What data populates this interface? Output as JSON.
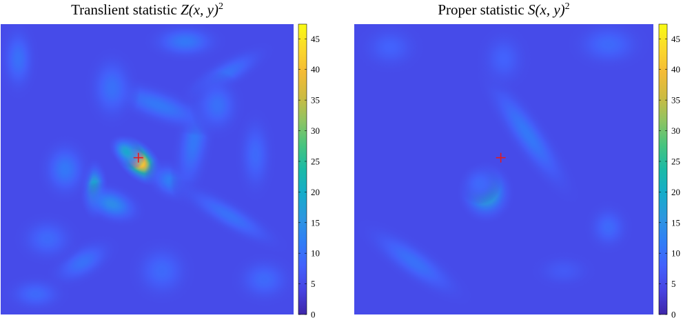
{
  "colors": {
    "colormap": [
      "#3e26a8",
      "#4743e2",
      "#4361fc",
      "#307ef6",
      "#2d97df",
      "#16acca",
      "#1bbaa6",
      "#47c47e",
      "#8fc462",
      "#cdbb41",
      "#f4bb36",
      "#fbd92b",
      "#f9fb14"
    ],
    "marker": "#e41a1c"
  },
  "chart_data": [
    {
      "type": "heatmap",
      "title_text": "Translient statistic ",
      "title_math": "Z(x, y)",
      "title_sup": "2",
      "colorbar": {
        "ticks": [
          0,
          5,
          10,
          15,
          20,
          25,
          30,
          35,
          40,
          45
        ],
        "range": [
          0,
          47.4
        ]
      },
      "peak_value": 47,
      "peak_location": [
        0.47,
        0.46
      ],
      "marker": {
        "symbol": "+",
        "x": 0.47,
        "y": 0.46
      },
      "background_level": 5,
      "blobs": [
        {
          "x": 0.47,
          "y": 0.47,
          "sx": 0.045,
          "sy": 0.026,
          "angle": 45,
          "amp": 42
        },
        {
          "x": 0.43,
          "y": 0.44,
          "sx": 0.03,
          "sy": 0.02,
          "angle": 40,
          "amp": 14
        },
        {
          "x": 0.32,
          "y": 0.57,
          "sx": 0.02,
          "sy": 0.045,
          "angle": 0,
          "amp": 17
        },
        {
          "x": 0.38,
          "y": 0.62,
          "sx": 0.05,
          "sy": 0.03,
          "angle": 20,
          "amp": 9
        },
        {
          "x": 0.22,
          "y": 0.5,
          "sx": 0.04,
          "sy": 0.05,
          "angle": 0,
          "amp": 6
        },
        {
          "x": 0.58,
          "y": 0.54,
          "sx": 0.04,
          "sy": 0.03,
          "angle": 30,
          "amp": 7
        },
        {
          "x": 0.66,
          "y": 0.4,
          "sx": 0.03,
          "sy": 0.1,
          "angle": 10,
          "amp": 6
        },
        {
          "x": 0.54,
          "y": 0.28,
          "sx": 0.1,
          "sy": 0.03,
          "angle": 20,
          "amp": 6
        },
        {
          "x": 0.38,
          "y": 0.22,
          "sx": 0.04,
          "sy": 0.06,
          "angle": 0,
          "amp": 5
        },
        {
          "x": 0.63,
          "y": 0.06,
          "sx": 0.06,
          "sy": 0.03,
          "angle": 0,
          "amp": 6
        },
        {
          "x": 0.77,
          "y": 0.17,
          "sx": 0.08,
          "sy": 0.025,
          "angle": -30,
          "amp": 5
        },
        {
          "x": 0.74,
          "y": 0.28,
          "sx": 0.04,
          "sy": 0.05,
          "angle": 0,
          "amp": 5
        },
        {
          "x": 0.78,
          "y": 0.66,
          "sx": 0.1,
          "sy": 0.025,
          "angle": 30,
          "amp": 5
        },
        {
          "x": 0.87,
          "y": 0.45,
          "sx": 0.03,
          "sy": 0.07,
          "angle": 0,
          "amp": 4
        },
        {
          "x": 0.28,
          "y": 0.82,
          "sx": 0.06,
          "sy": 0.03,
          "angle": -30,
          "amp": 5
        },
        {
          "x": 0.16,
          "y": 0.74,
          "sx": 0.05,
          "sy": 0.04,
          "angle": 0,
          "amp": 4
        },
        {
          "x": 0.06,
          "y": 0.12,
          "sx": 0.03,
          "sy": 0.06,
          "angle": 0,
          "amp": 5
        },
        {
          "x": 0.12,
          "y": 0.93,
          "sx": 0.05,
          "sy": 0.03,
          "angle": 0,
          "amp": 4
        },
        {
          "x": 0.55,
          "y": 0.85,
          "sx": 0.05,
          "sy": 0.05,
          "angle": 0,
          "amp": 4
        },
        {
          "x": 0.9,
          "y": 0.88,
          "sx": 0.05,
          "sy": 0.04,
          "angle": 0,
          "amp": 4
        }
      ]
    },
    {
      "type": "heatmap",
      "title_text": "Proper statistic ",
      "title_math": "S(x, y)",
      "title_sup": "2",
      "colorbar": {
        "ticks": [
          0,
          5,
          10,
          15,
          20,
          25,
          30,
          35,
          40,
          45
        ],
        "range": [
          0,
          47.4
        ]
      },
      "peak_value": 20,
      "peak_location": [
        0.44,
        0.58
      ],
      "marker": {
        "symbol": "+",
        "x": 0.49,
        "y": 0.46
      },
      "background_level": 5,
      "blobs": [
        {
          "x": 0.44,
          "y": 0.58,
          "sx": 0.04,
          "sy": 0.045,
          "angle": 0,
          "amp": 16
        },
        {
          "x": 0.42,
          "y": 0.55,
          "sx": 0.03,
          "sy": 0.03,
          "angle": 0,
          "amp": 4
        },
        {
          "x": 0.58,
          "y": 0.38,
          "sx": 0.12,
          "sy": 0.03,
          "angle": 55,
          "amp": 6
        },
        {
          "x": 0.5,
          "y": 0.12,
          "sx": 0.04,
          "sy": 0.05,
          "angle": 0,
          "amp": 3
        },
        {
          "x": 0.85,
          "y": 0.07,
          "sx": 0.06,
          "sy": 0.04,
          "angle": 0,
          "amp": 4
        },
        {
          "x": 0.12,
          "y": 0.08,
          "sx": 0.05,
          "sy": 0.04,
          "angle": 0,
          "amp": 3
        },
        {
          "x": 0.2,
          "y": 0.82,
          "sx": 0.1,
          "sy": 0.03,
          "angle": 35,
          "amp": 5
        },
        {
          "x": 0.85,
          "y": 0.7,
          "sx": 0.035,
          "sy": 0.04,
          "angle": 0,
          "amp": 4
        },
        {
          "x": 0.7,
          "y": 0.85,
          "sx": 0.05,
          "sy": 0.03,
          "angle": 0,
          "amp": 2
        }
      ]
    }
  ]
}
